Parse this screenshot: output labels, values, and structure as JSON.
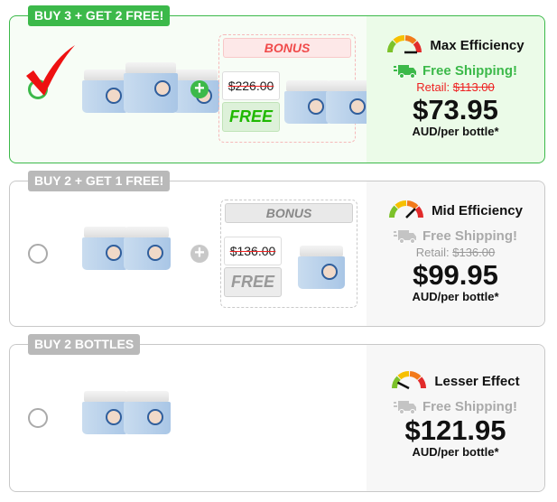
{
  "offers": [
    {
      "badge": "BUY 3 + GET 2 FREE!",
      "selected": true,
      "main_jars": 3,
      "bonus": {
        "label": "BONUS",
        "old_price": "$226.00",
        "free": "FREE",
        "jars": 2
      },
      "efficiency": "Max Efficiency",
      "gauge_level": 1.0,
      "shipping": "Free Shipping!",
      "retail_label": "Retail:",
      "retail_price": "$113.00",
      "price": "$73.95",
      "per": "AUD/per bottle*"
    },
    {
      "badge": "BUY 2 + GET 1 FREE!",
      "selected": false,
      "main_jars": 2,
      "bonus": {
        "label": "BONUS",
        "old_price": "$136.00",
        "free": "FREE",
        "jars": 1
      },
      "efficiency": "Mid Efficiency",
      "gauge_level": 0.75,
      "shipping": "Free Shipping!",
      "retail_label": "Retail:",
      "retail_price": "$136.00",
      "price": "$99.95",
      "per": "AUD/per bottle*"
    },
    {
      "badge": "BUY 2 BOTTLES",
      "selected": false,
      "main_jars": 2,
      "efficiency": "Lesser Effect",
      "gauge_level": 0.15,
      "shipping": "Free Shipping!",
      "price": "$121.95",
      "per": "AUD/per bottle*"
    }
  ],
  "colors": {
    "accent": "#3cb94a",
    "inactive": "#b9b9b9",
    "strike": "#ee2222"
  },
  "icons": {
    "check": "checkmark-icon",
    "gauge": "speedometer-icon",
    "truck": "truck-icon",
    "plus": "plus-circle-icon"
  }
}
